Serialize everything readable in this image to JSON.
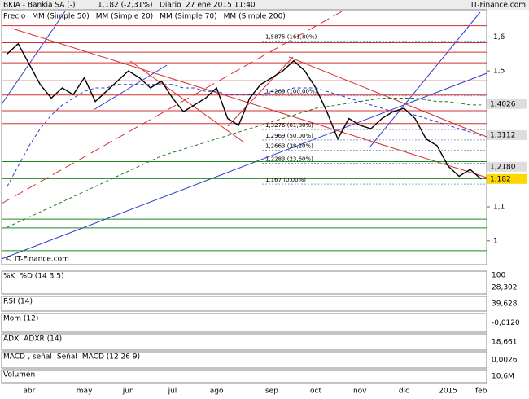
{
  "header": {
    "symbol": "BKIA - Bankia SA (-)",
    "quote": "1,182 (-2,31%)",
    "period": "Diario",
    "datetime": "27 ene 2015 11:40",
    "site": "IT-Finance.com"
  },
  "chart_data": {
    "type": "line",
    "watermark": "© IT-Finance.com",
    "categories": [
      null,
      null,
      "abr",
      null,
      null,
      null,
      null,
      "may",
      null,
      null,
      null,
      "jun",
      null,
      null,
      null,
      "jul",
      null,
      null,
      null,
      "ago",
      null,
      null,
      null,
      null,
      "sep",
      null,
      null,
      null,
      "oct",
      null,
      null,
      null,
      "nov",
      null,
      null,
      null,
      "dic",
      null,
      null,
      null,
      "2015",
      null,
      null,
      "feb"
    ],
    "series": [
      {
        "name": "Precio",
        "color": "#000000",
        "values": [
          1.55,
          1.58,
          1.52,
          1.46,
          1.42,
          1.45,
          1.43,
          1.48,
          1.41,
          1.44,
          1.47,
          1.5,
          1.48,
          1.45,
          1.47,
          1.42,
          1.38,
          1.4,
          1.42,
          1.45,
          1.36,
          1.34,
          1.42,
          1.46,
          1.48,
          1.5,
          1.53,
          1.5,
          1.45,
          1.38,
          1.3,
          1.36,
          1.34,
          1.33,
          1.36,
          1.38,
          1.39,
          1.36,
          1.3,
          1.28,
          1.22,
          1.19,
          1.21,
          1.182
        ]
      },
      {
        "name": "MM (Simple 70)",
        "color": "#2b3fd0",
        "values": [
          1.16,
          1.22,
          1.28,
          1.33,
          1.37,
          1.4,
          1.42,
          1.44,
          1.45,
          1.45,
          1.46,
          1.46,
          1.46,
          1.46,
          1.46,
          1.46,
          1.45,
          1.45,
          1.44,
          1.44,
          1.43,
          1.43,
          1.43,
          1.43,
          1.44,
          1.44,
          1.45,
          1.45,
          1.45,
          1.44,
          1.43,
          1.42,
          1.41,
          1.4,
          1.39,
          1.38,
          1.38,
          1.37,
          1.36,
          1.35,
          1.34,
          1.33,
          1.32,
          1.31
        ]
      },
      {
        "name": "MM (Simple 200)",
        "color": "#1f7a1f",
        "values": [
          1.04,
          1.055,
          1.07,
          1.085,
          1.1,
          1.115,
          1.13,
          1.145,
          1.16,
          1.175,
          1.19,
          1.205,
          1.22,
          1.235,
          1.25,
          1.26,
          1.27,
          1.28,
          1.29,
          1.3,
          1.31,
          1.32,
          1.33,
          1.34,
          1.35,
          1.36,
          1.37,
          1.38,
          1.39,
          1.395,
          1.4,
          1.405,
          1.41,
          1.415,
          1.42,
          1.42,
          1.42,
          1.42,
          1.415,
          1.41,
          1.41,
          1.405,
          1.4,
          1.4
        ]
      }
    ],
    "legend": [
      {
        "name": "Precio",
        "color": "#000000"
      },
      {
        "name": "MM (Simple 50)",
        "color": "#9aa6d8"
      },
      {
        "name": "MM (Simple 20)",
        "color": "#d01010"
      },
      {
        "name": "MM (Simple 70)",
        "color": "#2b3fd0"
      },
      {
        "name": "MM (Simple 200)",
        "color": "#1f7a1f"
      }
    ],
    "ylim": [
      0.93,
      1.68
    ],
    "yticks": [
      {
        "value": 1.6,
        "label": "1,6"
      },
      {
        "value": 1.5,
        "label": "1,5"
      },
      {
        "value": 1.1,
        "label": "1,1"
      },
      1
    ],
    "price_labels": [
      {
        "value": 1.4026,
        "label": "1,4026",
        "color": "#dddddd"
      },
      {
        "value": 1.3112,
        "label": "1,3112",
        "color": "#dddddd"
      },
      {
        "value": 1.218,
        "label": "1,2180",
        "color": "#dddddd"
      },
      {
        "value": 1.182,
        "label": "1,182",
        "color": "#ffd700"
      }
    ],
    "fibonacci": [
      {
        "value": 1.5875,
        "label": "1,5875 (161,80%)"
      },
      {
        "value": 1.4269,
        "label": "1,4269 (100,00%)"
      },
      {
        "value": 1.3276,
        "label": "1,3276 (61,80%)"
      },
      {
        "value": 1.2969,
        "label": "1,2969 (50,00%)"
      },
      {
        "value": 1.2663,
        "label": "1,2663 (38,20%)"
      },
      {
        "value": 1.2283,
        "label": "1,2283 (23,60%)"
      },
      {
        "value": 1.167,
        "label": "1,167 (0,00%)"
      }
    ],
    "resistance": {
      "color": "#d23030",
      "values": [
        1.633,
        1.583,
        1.555,
        1.524,
        1.471,
        1.429,
        1.383,
        1.345
      ]
    },
    "support": {
      "color": "#1a8a1a",
      "values": [
        1.233,
        1.183,
        1.064,
        1.038,
        0.971
      ]
    }
  },
  "panels": [
    {
      "labels": [
        "%K",
        "%D (14 3 5)"
      ],
      "right_labels": [
        "100",
        "28,302"
      ]
    },
    {
      "labels": [
        "RSI (14)"
      ],
      "right_labels": [
        "39,628"
      ]
    },
    {
      "labels": [
        "Mom (12)"
      ],
      "right_labels": [
        "-0,0120"
      ]
    },
    {
      "labels": [
        "ADX",
        "ADXR (14)"
      ],
      "right_labels": [
        "18,661"
      ]
    },
    {
      "labels": [
        "MACD-, señal",
        "Señal",
        "MACD (12 26 9)"
      ],
      "right_labels": [
        "0,0026"
      ]
    },
    {
      "labels": [
        "Volumen"
      ],
      "right_labels": [
        "10,6M"
      ]
    }
  ]
}
